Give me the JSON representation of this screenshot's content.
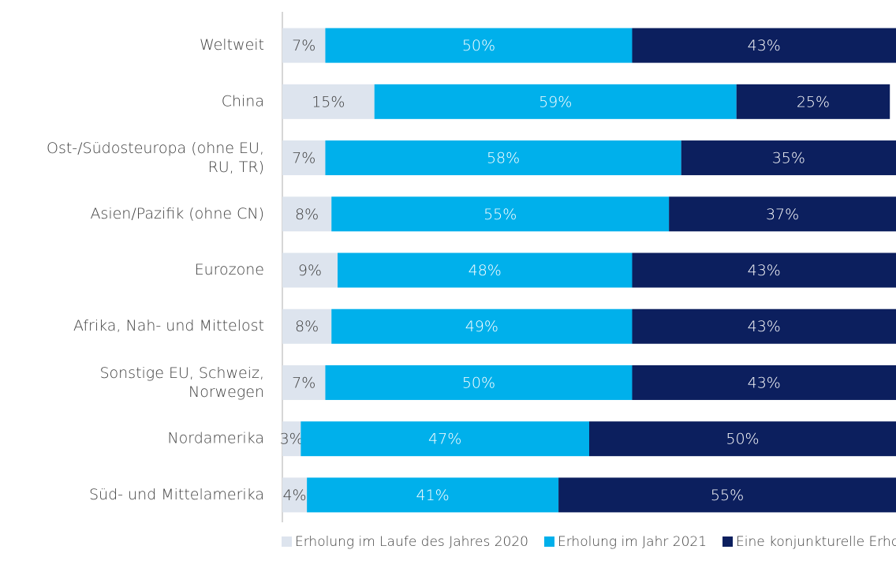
{
  "chart_data": {
    "type": "stacked_bar_horizontal",
    "categories": [
      "Weltweit",
      "China",
      "Ost-/Südosteuropa (ohne EU,\nRU, TR)",
      "Asien/Pazifik (ohne CN)",
      "Eurozone",
      "Afrika, Nah- und Mittelost",
      "Sonstige EU, Schweiz,\nNorwegen",
      "Nordamerika",
      "Süd- und Mittelamerika"
    ],
    "series": [
      {
        "name": "Erholung im Laufe des Jahres 2020",
        "color": "#dde4ee",
        "values": [
          7,
          15,
          7,
          8,
          9,
          8,
          7,
          3,
          4
        ],
        "value_labels": [
          "7%",
          "15%",
          "7%",
          "8%",
          "9%",
          "8%",
          "7%",
          "3%",
          "4%"
        ]
      },
      {
        "name": "Erholung im Jahr 2021",
        "color": "#00b0eb",
        "values": [
          50,
          59,
          58,
          55,
          48,
          49,
          50,
          47,
          41
        ],
        "value_labels": [
          "50%",
          "59%",
          "58%",
          "55%",
          "48%",
          "49%",
          "50%",
          "47%",
          "41%"
        ]
      },
      {
        "name": "Eine konjunkturelle Erholung wird länger dauern",
        "color": "#0c1f5e",
        "values": [
          43,
          25,
          35,
          37,
          43,
          43,
          43,
          50,
          55
        ],
        "value_labels": [
          "43%",
          "25%",
          "35%",
          "37%",
          "43%",
          "43%",
          "43%",
          "50%",
          "55%"
        ]
      }
    ],
    "xlim": [
      0,
      100
    ]
  }
}
